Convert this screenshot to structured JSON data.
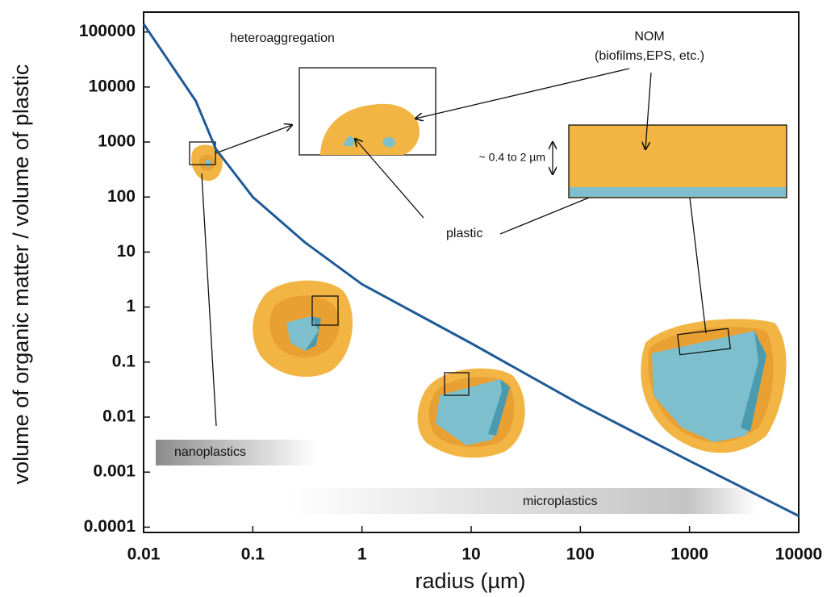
{
  "chart_data": {
    "type": "line",
    "x_label": "radius (µm)",
    "y_label": "volume of organic matter / volume of plastic",
    "x": [
      0.01,
      0.03,
      0.046,
      0.1,
      0.3,
      1,
      10,
      100,
      1000,
      10000
    ],
    "series": [
      {
        "color": "#1f5a96",
        "values": [
          140000,
          5600,
          740,
          100,
          15,
          2.6,
          0.22,
          0.017,
          0.0016,
          0.00016
        ]
      }
    ],
    "log_x": true,
    "log_y": true,
    "xlim": [
      0.01,
      10000
    ],
    "ylim": [
      8e-05,
      230000
    ],
    "xticks": [
      0.01,
      0.1,
      1,
      10,
      100,
      1000,
      10000
    ],
    "yticks": [
      100000,
      10000,
      1000,
      100,
      10,
      1,
      0.1,
      0.01,
      0.001,
      0.0001
    ],
    "annotations": [
      "heteroaggregation",
      "NOM",
      "(biofilms,EPS, etc.)",
      "~ 0.4 to 2 µm",
      "plastic",
      "nanoplastics",
      "microplastics"
    ]
  }
}
